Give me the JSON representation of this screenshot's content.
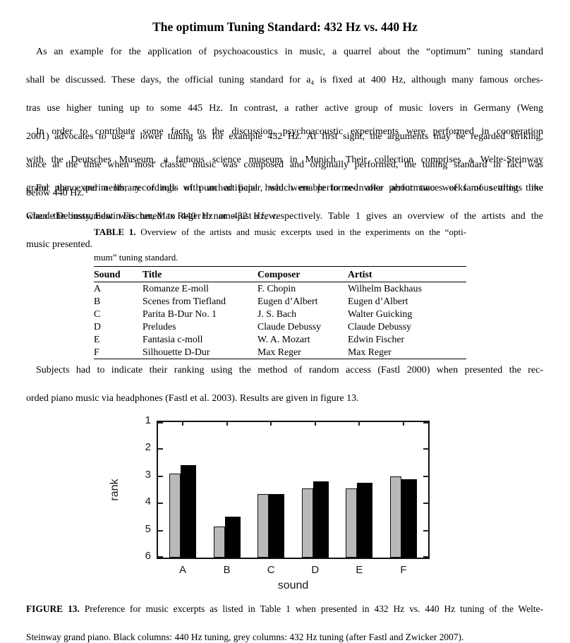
{
  "page": {
    "title": "The optimum Tuning Standard: 432 Hz vs. 440 Hz"
  },
  "paragraphs": {
    "p1_lines": [
      "As an example for the application of psychoacoustics in music, a quarrel about the “optimum” tuning standard",
      "shall be discussed. These days, the official tuning standard for a₄ is fixed at 400 Hz, although many famous orches-",
      "tras use higher tuning up to some 445 Hz. In contrast, a rather active group of music lovers in Germany (Weng",
      "2001) advocates to use a lower tuning as for example 432 Hz. At first sight, the arguments may be regarded striking,",
      "since at the time when most classic music was composed and originally performed, the tuning standard in fact was",
      "below 440 Hz."
    ],
    "p2_lines": [
      "In order to contribute some facts to the discussion, psychoacoustic experiments were performed in cooperation",
      "with the Deutsches Museum, a famous science museum in Munich. Their collection comprises a Welte-Steinway",
      "grand piano and a library of rolls of punched paper, which enable to re-invoke performances of famous artists like",
      "Claude Debussy, Edwin Fischer, Max Reger to name just a few."
    ],
    "p3_lines": [
      "For the experiments, recordings with an artificial head were performed after about two weeks of settling time",
      "when the instrument was tuned to 440 Hz or 432 Hz, respectively. Table 1 gives an overview of the artists and the",
      "music presented."
    ],
    "p4_lines": [
      "Subjects had to indicate their ranking using the method of random access (Fastl 2000) when presented the rec-",
      "orded piano music via headphones (Fastl et al. 2003). Results are given in figure 13."
    ]
  },
  "table": {
    "caption_label": "TABLE 1.",
    "caption_lines": [
      "Overview of the artists and music excerpts used in the experiments on the “opti-",
      "mum” tuning standard."
    ],
    "headers": [
      "Sound",
      "Title",
      "Composer",
      "Artist"
    ],
    "rows": [
      [
        "A",
        "Romanze E-moll",
        "F. Chopin",
        "Wilhelm Backhaus"
      ],
      [
        "B",
        "Scenes from Tiefland",
        "Eugen d’Albert",
        "Eugen d’Albert"
      ],
      [
        "C",
        "Parita B-Dur No. 1",
        "J. S. Bach",
        "Walter Guicking"
      ],
      [
        "D",
        "Preludes",
        "Claude Debussy",
        "Claude Debussy"
      ],
      [
        "E",
        "Fantasia c-moll",
        "W. A. Mozart",
        "Edwin Fischer"
      ],
      [
        "F",
        "Silhouette D-Dur",
        "Max Reger",
        "Max Reger"
      ]
    ]
  },
  "figure": {
    "caption_label": "FIGURE 13.",
    "caption_lines": [
      "Preference for music excerpts as listed in Table 1 when presented in 432 Hz vs. 440 Hz tuning of the Welte-",
      "Steinway grand piano. Black columns: 440 Hz tuning, grey columns: 432 Hz tuning (after Fastl and Zwicker 2007)."
    ]
  },
  "chart_data": {
    "type": "bar",
    "title": "",
    "xlabel": "sound",
    "ylabel": "rank",
    "categories": [
      "A",
      "B",
      "C",
      "D",
      "E",
      "F"
    ],
    "series": [
      {
        "name": "432 Hz tuning (grey columns)",
        "color": "#b9b9b9",
        "values": [
          2.9,
          4.85,
          3.65,
          3.45,
          3.45,
          3.0
        ]
      },
      {
        "name": "440 Hz tuning (black columns)",
        "color": "#000000",
        "values": [
          2.6,
          4.5,
          3.65,
          3.2,
          3.25,
          3.1
        ]
      }
    ],
    "yticks": [
      1,
      2,
      3,
      4,
      5,
      6
    ],
    "ylim": [
      1,
      6
    ],
    "y_axis_inverted": true,
    "grid": false,
    "legend_position": "none"
  }
}
